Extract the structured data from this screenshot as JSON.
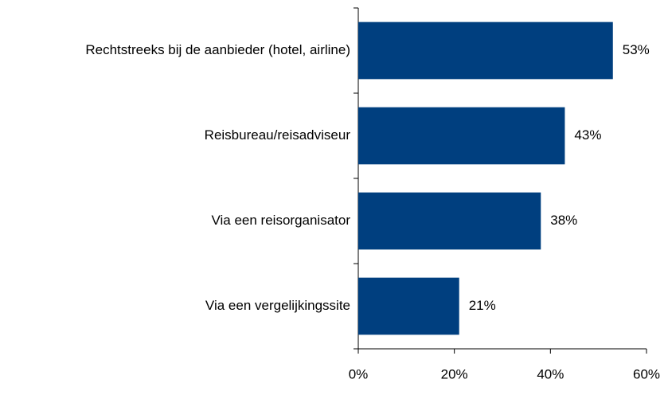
{
  "chart_data": {
    "type": "hbar",
    "categories": [
      "Rechtstreeks bij de aanbieder (hotel, airline)",
      "Reisbureau/reisadviseur",
      "Via een reisorganisator",
      "Via een vergelijkingssite"
    ],
    "values": [
      53,
      43,
      38,
      21
    ],
    "value_labels": [
      "53%",
      "43%",
      "38%",
      "21%"
    ],
    "color": "#003f7f",
    "xlim": [
      0,
      60
    ],
    "xticks": [
      {
        "value": 0,
        "label": "0%"
      },
      {
        "value": 20,
        "label": "20%"
      },
      {
        "value": 40,
        "label": "40%"
      },
      {
        "value": 60,
        "label": "60%"
      }
    ]
  }
}
